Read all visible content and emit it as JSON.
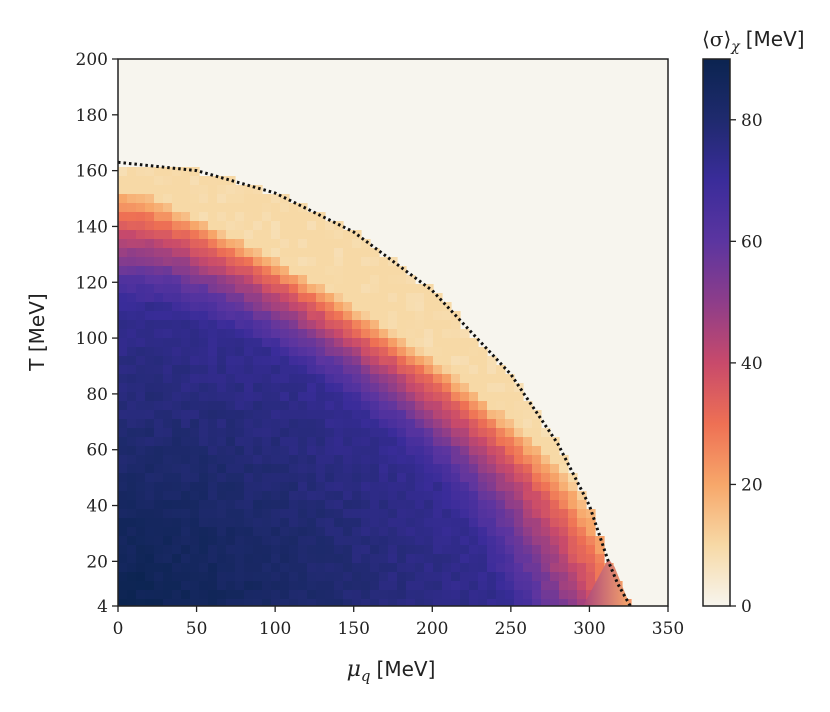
{
  "chart_data": {
    "type": "heatmap",
    "title": "",
    "xlabel": "μ_q [MeV]",
    "xlabel_symbol": "μ",
    "xlabel_subscript": "q",
    "xlabel_unit": "[MeV]",
    "ylabel": "T [MeV]",
    "xlim": [
      0,
      350
    ],
    "ylim": [
      4,
      200
    ],
    "x_ticks": [
      0,
      50,
      100,
      150,
      200,
      250,
      300,
      350
    ],
    "y_ticks": [
      4,
      20,
      40,
      60,
      80,
      100,
      120,
      140,
      160,
      180,
      200
    ],
    "colorbar": {
      "label": "⟨σ⟩_χ [MeV]",
      "label_main": "⟨σ⟩",
      "label_sub": "χ",
      "label_unit": "[MeV]",
      "min": 0,
      "max": 90,
      "ticks": [
        0,
        20,
        40,
        60,
        80
      ],
      "colors": [
        "#f7f5ee",
        "#f7d9a6",
        "#f7a76a",
        "#ee7054",
        "#c84a6b",
        "#8d3d8a",
        "#5b35a0",
        "#3a2c9a",
        "#1f2a6e",
        "#0b2450"
      ]
    },
    "background_color": "#f7f5ee",
    "grid": false,
    "phase_boundary": {
      "style": "dotted",
      "color": "#111111",
      "points": [
        [
          0,
          163
        ],
        [
          50,
          160
        ],
        [
          100,
          152
        ],
        [
          150,
          138
        ],
        [
          200,
          117
        ],
        [
          250,
          87
        ],
        [
          280,
          62
        ],
        [
          300,
          40
        ],
        [
          312,
          20
        ],
        [
          318,
          12
        ],
        [
          326,
          4
        ]
      ]
    },
    "field_model": {
      "sigma_max": 90,
      "onset_levels": [
        [
          0,
          0
        ],
        [
          0.72,
          18
        ],
        [
          0.8,
          32
        ],
        [
          0.86,
          45
        ],
        [
          0.92,
          58
        ],
        [
          0.97,
          73
        ],
        [
          1.0,
          80
        ]
      ],
      "description_shown": false
    },
    "secondary_region": {
      "points": [
        [
          296,
          4
        ],
        [
          326,
          4
        ],
        [
          316,
          18
        ],
        [
          312,
          21
        ]
      ],
      "sigma_at_edge": 20
    }
  }
}
